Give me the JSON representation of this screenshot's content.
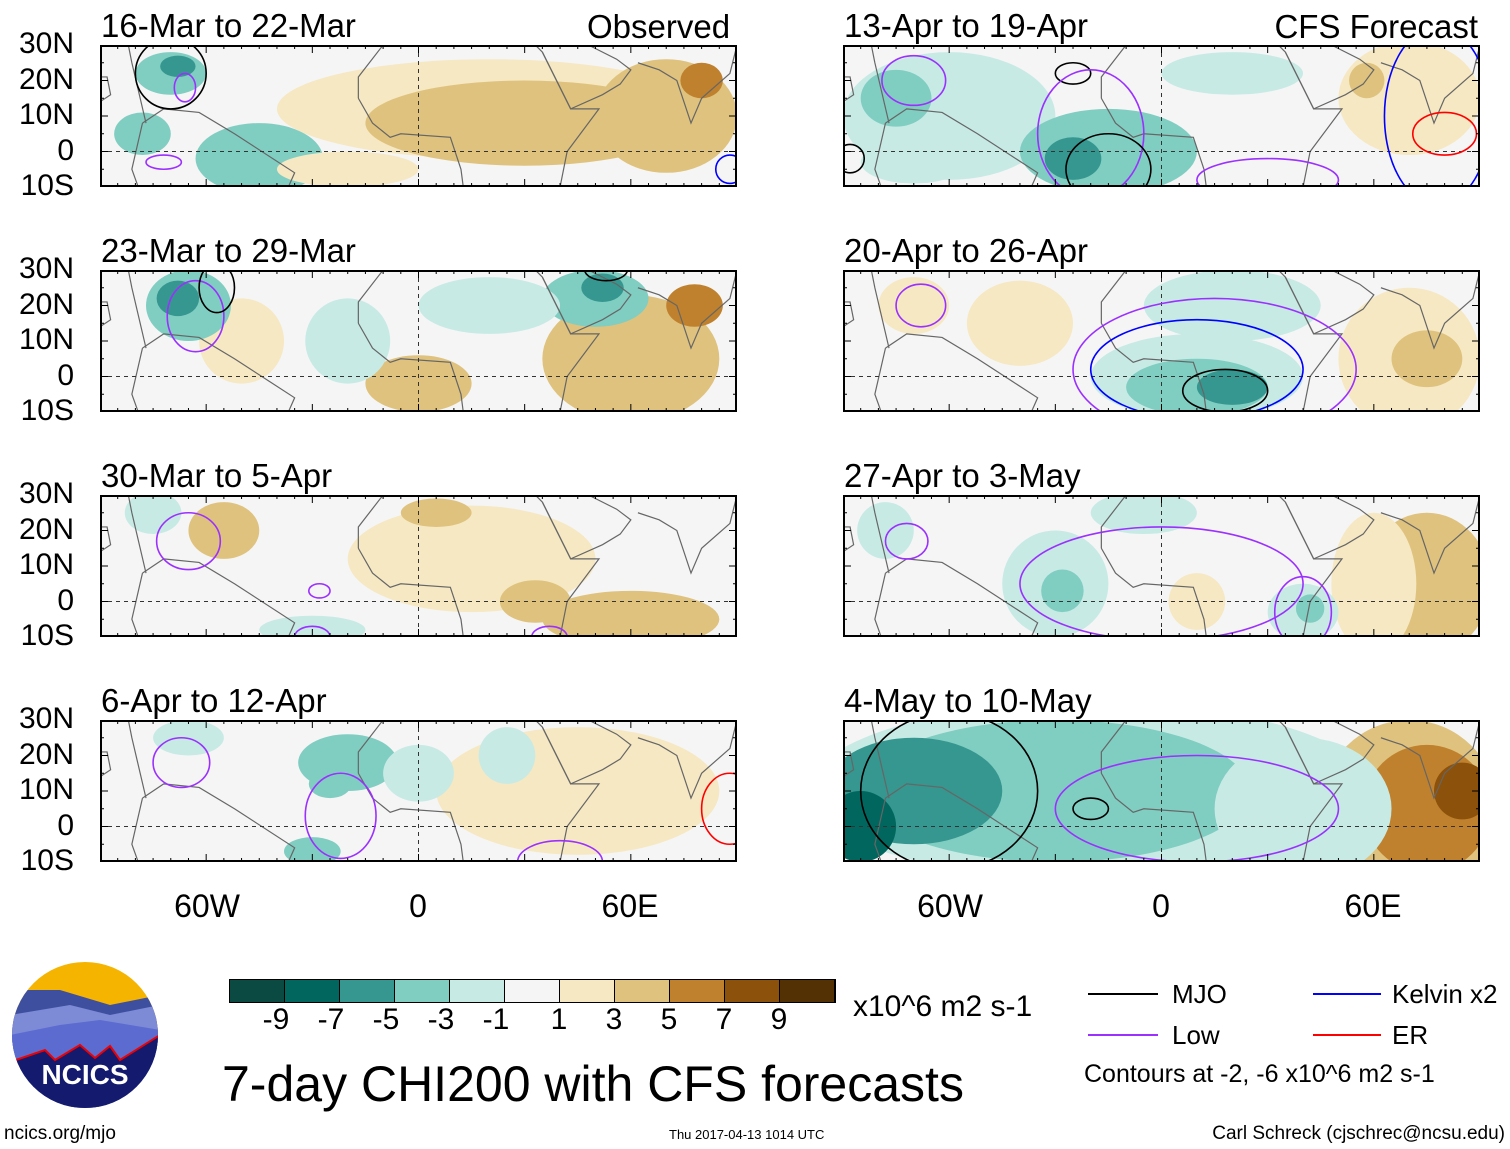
{
  "labels": {
    "observed": "Observed",
    "forecast": "CFS Forecast"
  },
  "lat_ticks": [
    "30N",
    "20N",
    "10N",
    "0",
    "10S"
  ],
  "lon_ticks": [
    "60W",
    "0",
    "60E"
  ],
  "palette": [
    "#0b4a42",
    "#01665e",
    "#35978f",
    "#80cdc1",
    "#c7eae5",
    "#f5f5f5",
    "#f6e8c3",
    "#dfc27d",
    "#bf812d",
    "#8c510a",
    "#543005"
  ],
  "contour_colors": {
    "mjo": "#000000",
    "low": "#9b30ff",
    "kelvin": "#0000ff",
    "er": "#ff0000"
  },
  "panels": [
    {
      "title": "16-Mar to 22-Mar",
      "col": 0,
      "row": 0,
      "blobs": [
        [
          20,
          12,
          60,
          14,
          6
        ],
        [
          30,
          8,
          45,
          12,
          7
        ],
        [
          70,
          10,
          20,
          16,
          7
        ],
        [
          80,
          20,
          6,
          5,
          8
        ],
        [
          -70,
          22,
          10,
          6,
          3
        ],
        [
          -68,
          24,
          5,
          3,
          2
        ],
        [
          -45,
          -2,
          18,
          10,
          3
        ],
        [
          -78,
          5,
          8,
          6,
          3
        ],
        [
          -20,
          -5,
          20,
          5,
          6
        ]
      ],
      "contours": [
        [
          -70,
          22,
          10,
          10,
          "mjo"
        ],
        [
          -66,
          18,
          3,
          4,
          "low"
        ],
        [
          -72,
          -3,
          5,
          2,
          "low"
        ],
        [
          88,
          -5,
          4,
          4,
          "kelvin"
        ]
      ]
    },
    {
      "title": "23-Mar to 29-Mar",
      "col": 0,
      "row": 1,
      "blobs": [
        [
          -50,
          10,
          12,
          12,
          6
        ],
        [
          60,
          5,
          25,
          18,
          7
        ],
        [
          78,
          20,
          8,
          6,
          8
        ],
        [
          0,
          -2,
          15,
          8,
          7
        ],
        [
          -65,
          20,
          12,
          10,
          3
        ],
        [
          -68,
          22,
          6,
          5,
          2
        ],
        [
          50,
          22,
          15,
          8,
          3
        ],
        [
          52,
          25,
          6,
          4,
          2
        ],
        [
          -20,
          10,
          12,
          12,
          4
        ],
        [
          20,
          20,
          20,
          8,
          4
        ]
      ],
      "contours": [
        [
          -63,
          17,
          8,
          10,
          "low"
        ],
        [
          -57,
          25,
          5,
          7,
          "mjo"
        ],
        [
          53,
          30,
          6,
          3,
          "mjo"
        ]
      ]
    },
    {
      "title": "30-Mar to 5-Apr",
      "col": 0,
      "row": 2,
      "blobs": [
        [
          15,
          12,
          35,
          15,
          6
        ],
        [
          60,
          -5,
          25,
          8,
          7
        ],
        [
          33,
          0,
          10,
          6,
          7
        ],
        [
          -55,
          20,
          10,
          8,
          7
        ],
        [
          -75,
          25,
          8,
          6,
          4
        ],
        [
          -30,
          -8,
          15,
          4,
          4
        ],
        [
          5,
          25,
          10,
          4,
          7
        ]
      ],
      "contours": [
        [
          -65,
          17,
          9,
          8,
          "low"
        ],
        [
          -28,
          3,
          3,
          2,
          "low"
        ],
        [
          -30,
          -10,
          5,
          3,
          "low"
        ],
        [
          37,
          -10,
          5,
          3,
          "low"
        ]
      ]
    },
    {
      "title": "6-Apr to 12-Apr",
      "col": 0,
      "row": 3,
      "blobs": [
        [
          45,
          10,
          40,
          18,
          6
        ],
        [
          -20,
          18,
          14,
          8,
          3
        ],
        [
          -25,
          12,
          6,
          4,
          3
        ],
        [
          -30,
          -7,
          8,
          4,
          3
        ],
        [
          -65,
          25,
          10,
          5,
          4
        ],
        [
          0,
          15,
          10,
          8,
          4
        ],
        [
          25,
          20,
          8,
          8,
          4
        ]
      ],
      "contours": [
        [
          -67,
          18,
          8,
          7,
          "low"
        ],
        [
          -22,
          3,
          10,
          12,
          "low"
        ],
        [
          40,
          -10,
          12,
          6,
          "low"
        ],
        [
          88,
          5,
          8,
          10,
          "er"
        ]
      ]
    },
    {
      "title": "13-Apr to 19-Apr",
      "col": 1,
      "row": 0,
      "blobs": [
        [
          -60,
          10,
          30,
          18,
          4
        ],
        [
          -75,
          15,
          10,
          8,
          3
        ],
        [
          -15,
          0,
          25,
          12,
          3
        ],
        [
          -25,
          -2,
          8,
          6,
          2
        ],
        [
          20,
          22,
          20,
          6,
          4
        ],
        [
          70,
          15,
          20,
          16,
          6
        ],
        [
          58,
          20,
          5,
          5,
          7
        ],
        [
          -70,
          -3,
          15,
          6,
          4
        ]
      ],
      "contours": [
        [
          -70,
          20,
          9,
          7,
          "low"
        ],
        [
          -25,
          22,
          5,
          3,
          "mjo"
        ],
        [
          -20,
          5,
          15,
          18,
          "low"
        ],
        [
          -15,
          -5,
          12,
          10,
          "mjo"
        ],
        [
          30,
          -8,
          20,
          6,
          "low"
        ],
        [
          80,
          5,
          9,
          6,
          "er"
        ],
        [
          78,
          10,
          15,
          25,
          "kelvin"
        ],
        [
          -88,
          -2,
          4,
          4,
          "mjo"
        ]
      ]
    },
    {
      "title": "20-Apr to 26-Apr",
      "col": 1,
      "row": 1,
      "blobs": [
        [
          -70,
          20,
          10,
          8,
          6
        ],
        [
          -40,
          15,
          15,
          12,
          6
        ],
        [
          70,
          5,
          20,
          20,
          6
        ],
        [
          75,
          5,
          10,
          8,
          7
        ],
        [
          10,
          0,
          30,
          12,
          4
        ],
        [
          10,
          -3,
          20,
          8,
          3
        ],
        [
          20,
          -3,
          10,
          5,
          2
        ],
        [
          20,
          20,
          25,
          10,
          4
        ]
      ],
      "contours": [
        [
          -68,
          20,
          7,
          6,
          "low"
        ],
        [
          10,
          2,
          30,
          14,
          "kelvin"
        ],
        [
          18,
          -4,
          12,
          6,
          "mjo"
        ],
        [
          15,
          2,
          40,
          20,
          "low"
        ]
      ]
    },
    {
      "title": "27-Apr to 3-May",
      "col": 1,
      "row": 2,
      "blobs": [
        [
          75,
          5,
          18,
          20,
          7
        ],
        [
          60,
          5,
          12,
          20,
          6
        ],
        [
          -30,
          5,
          15,
          15,
          4
        ],
        [
          -28,
          3,
          6,
          6,
          3
        ],
        [
          -78,
          20,
          8,
          8,
          4
        ],
        [
          40,
          -3,
          10,
          8,
          4
        ],
        [
          42,
          -2,
          4,
          4,
          3
        ],
        [
          10,
          0,
          8,
          8,
          6
        ],
        [
          -5,
          25,
          15,
          6,
          4
        ]
      ],
      "contours": [
        [
          -72,
          17,
          6,
          5,
          "low"
        ],
        [
          0,
          5,
          40,
          16,
          "low"
        ],
        [
          40,
          -3,
          8,
          10,
          "low"
        ]
      ]
    },
    {
      "title": "4-May to 10-May",
      "col": 1,
      "row": 3,
      "blobs": [
        [
          -20,
          10,
          80,
          25,
          4
        ],
        [
          -30,
          10,
          55,
          20,
          3
        ],
        [
          -70,
          10,
          25,
          15,
          2
        ],
        [
          -85,
          0,
          10,
          10,
          1
        ],
        [
          70,
          5,
          25,
          25,
          7
        ],
        [
          75,
          5,
          18,
          18,
          8
        ],
        [
          85,
          10,
          8,
          8,
          9
        ],
        [
          40,
          5,
          25,
          20,
          4
        ]
      ],
      "contours": [
        [
          -20,
          5,
          5,
          3,
          "mjo"
        ],
        [
          -60,
          10,
          25,
          22,
          "mjo"
        ],
        [
          10,
          5,
          40,
          15,
          "low"
        ]
      ]
    }
  ],
  "colorbar": {
    "ticks": [
      "-9",
      "-7",
      "-5",
      "-3",
      "-1",
      "1",
      "3",
      "5",
      "7",
      "9"
    ],
    "units": "x10^6 m2 s-1"
  },
  "main_title": "7-day CHI200 with CFS forecasts",
  "legend": {
    "mjo": "MJO",
    "low": "Low",
    "kelvin": "Kelvin x2",
    "er": "ER",
    "note": "Contours at -2, -6 x10^6 m2 s-1"
  },
  "logo": {
    "text": "NCICS"
  },
  "footer": {
    "url": "ncics.org/mjo",
    "timestamp": "Thu 2017-04-13 1014 UTC",
    "credit": "Carl Schreck (cjschrec@ncsu.edu)"
  }
}
